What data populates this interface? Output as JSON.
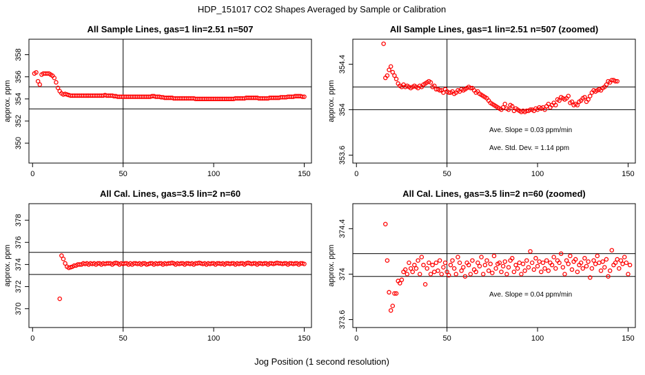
{
  "figure": {
    "title": "HDP_151017  CO2 Shapes Averaged by Sample or Calibration",
    "xlabel": "Jog Position (1 second resolution)"
  },
  "colors": {
    "points": "#ff0000",
    "axes": "#000000",
    "background": "#ffffff"
  },
  "chart_data": [
    {
      "type": "scatter",
      "title": "All Sample Lines, gas=1 lin=2.51 n=507",
      "xlabel": "",
      "ylabel": "approx. ppm",
      "xlim": [
        -2,
        154
      ],
      "ylim": [
        348.2,
        359.4
      ],
      "xticks": [
        0,
        50,
        100,
        150
      ],
      "yticks": [
        350,
        352,
        354,
        356,
        358
      ],
      "hlines": [
        353.1,
        355.1
      ],
      "vlines": [
        50
      ],
      "annotations": [],
      "series": [
        {
          "name": "sample",
          "x_start": 1,
          "y": [
            356.3,
            356.4,
            355.6,
            355.3,
            356.2,
            356.3,
            356.3,
            356.3,
            356.3,
            356.2,
            356.1,
            355.9,
            355.5,
            355.0,
            354.7,
            354.5,
            354.4,
            354.45,
            354.4,
            354.35,
            354.3,
            354.3,
            354.3,
            354.3,
            354.3,
            354.3,
            354.3,
            354.3,
            354.3,
            354.3,
            354.3,
            354.3,
            354.3,
            354.3,
            354.3,
            354.3,
            354.3,
            354.3,
            354.3,
            354.35,
            354.3,
            354.3,
            354.3,
            354.3,
            354.25,
            354.25,
            354.2,
            354.2,
            354.2,
            354.2,
            354.2,
            354.2,
            354.2,
            354.2,
            354.2,
            354.2,
            354.2,
            354.2,
            354.2,
            354.2,
            354.2,
            354.2,
            354.2,
            354.2,
            354.2,
            354.25,
            354.25,
            354.2,
            354.2,
            354.2,
            354.15,
            354.15,
            354.1,
            354.1,
            354.1,
            354.1,
            354.1,
            354.05,
            354.05,
            354.05,
            354.05,
            354.05,
            354.05,
            354.05,
            354.05,
            354.05,
            354.05,
            354.05,
            354.05,
            354.0,
            354.0,
            354.0,
            354.0,
            354.0,
            354.0,
            354.0,
            354.0,
            354.0,
            354.0,
            354.0,
            354.0,
            354.0,
            354.0,
            354.0,
            354.0,
            354.0,
            354.0,
            354.0,
            354.0,
            354.0,
            354.0,
            354.05,
            354.05,
            354.05,
            354.05,
            354.05,
            354.05,
            354.1,
            354.1,
            354.1,
            354.1,
            354.1,
            354.1,
            354.1,
            354.05,
            354.05,
            354.05,
            354.05,
            354.05,
            354.05,
            354.1,
            354.1,
            354.1,
            354.1,
            354.1,
            354.1,
            354.15,
            354.15,
            354.15,
            354.15,
            354.2,
            354.2,
            354.2,
            354.2,
            354.25,
            354.25,
            354.25,
            354.25,
            354.2,
            354.2
          ]
        }
      ]
    },
    {
      "type": "scatter",
      "title": "All Sample Lines, gas=1 lin=2.51 n=507 (zoomed)",
      "xlabel": "",
      "ylabel": "approx. ppm",
      "xlim": [
        -2,
        154
      ],
      "ylim": [
        353.53,
        354.62
      ],
      "xticks": [
        0,
        50,
        100,
        150
      ],
      "yticks": [
        353.6,
        354.0,
        354.4
      ],
      "hlines": [
        354.2,
        354.0
      ],
      "vlines": [
        50
      ],
      "annotations": [
        {
          "text": "Ave. Slope =  0.03  ppm/min"
        },
        {
          "text": "Ave. Std. Dev. =  1.14  ppm"
        }
      ],
      "series": [
        {
          "name": "sample-zoomed",
          "x_start": 15,
          "y": [
            354.58,
            354.28,
            354.3,
            354.35,
            354.38,
            354.33,
            354.3,
            354.27,
            354.23,
            354.21,
            354.2,
            354.22,
            354.2,
            354.21,
            354.2,
            354.19,
            354.2,
            354.21,
            354.2,
            354.19,
            354.21,
            354.2,
            354.22,
            354.23,
            354.24,
            354.25,
            354.24,
            354.2,
            354.21,
            354.18,
            354.18,
            354.17,
            354.17,
            354.15,
            354.18,
            354.16,
            354.15,
            354.15,
            354.16,
            354.14,
            354.15,
            354.17,
            354.16,
            354.18,
            354.17,
            354.18,
            354.19,
            354.2,
            354.19,
            354.19,
            354.17,
            354.15,
            354.16,
            354.14,
            354.13,
            354.12,
            354.11,
            354.1,
            354.08,
            354.06,
            354.05,
            354.04,
            354.03,
            354.02,
            354.01,
            354.0,
            354.02,
            354.05,
            354.01,
            354.0,
            354.04,
            354.03,
            353.99,
            354.01,
            354.0,
            353.99,
            353.98,
            353.99,
            353.98,
            353.99,
            353.99,
            354.0,
            354.0,
            353.99,
            354.01,
            354.0,
            354.02,
            354.01,
            354.02,
            354.0,
            354.03,
            354.05,
            354.02,
            354.04,
            354.06,
            354.04,
            354.09,
            354.08,
            354.11,
            354.1,
            354.09,
            354.1,
            354.12,
            354.06,
            354.07,
            354.04,
            354.05,
            354.04,
            354.07,
            354.08,
            354.1,
            354.11,
            354.07,
            354.09,
            354.12,
            354.15,
            354.17,
            354.16,
            354.17,
            354.18,
            354.17,
            354.19,
            354.2,
            354.22,
            354.25,
            354.24,
            354.26,
            354.26,
            354.25,
            354.25
          ]
        }
      ]
    },
    {
      "type": "scatter",
      "title": "All Cal. Lines, gas=3.5 lin=2 n=60",
      "xlabel": "",
      "ylabel": "approx. ppm",
      "xlim": [
        -2,
        154
      ],
      "ylim": [
        368.3,
        379.5
      ],
      "xticks": [
        0,
        50,
        100,
        150
      ],
      "yticks": [
        370,
        372,
        374,
        376,
        378
      ],
      "hlines": [
        375.1,
        373.1
      ],
      "vlines": [
        50
      ],
      "annotations": [],
      "series": [
        {
          "name": "calibration",
          "x_start": 15,
          "y": [
            370.9,
            374.8,
            374.5,
            374.1,
            373.8,
            373.7,
            373.75,
            373.8,
            373.9,
            373.9,
            374.0,
            374.0,
            374.0,
            374.1,
            374.05,
            374.1,
            374.0,
            374.1,
            374.05,
            374.1,
            374.0,
            374.1,
            374.1,
            374.0,
            374.1,
            374.05,
            374.1,
            374.1,
            374.1,
            374.0,
            374.1,
            374.15,
            374.1,
            374.0,
            374.1,
            374.05,
            374.1,
            374.1,
            374.0,
            374.1,
            374.0,
            374.1,
            374.1,
            374.05,
            374.1,
            374.0,
            374.1,
            374.1,
            374.0,
            374.05,
            374.1,
            374.1,
            374.0,
            374.1,
            374.05,
            374.1,
            374.1,
            374.0,
            374.1,
            374.05,
            374.1,
            374.1,
            374.15,
            374.1,
            374.0,
            374.1,
            374.05,
            374.1,
            374.1,
            374.0,
            374.1,
            374.1,
            374.05,
            374.1,
            374.0,
            374.1,
            374.1,
            374.15,
            374.1,
            374.05,
            374.1,
            374.0,
            374.1,
            374.05,
            374.1,
            374.1,
            374.0,
            374.1,
            374.1,
            374.05,
            374.1,
            374.0,
            374.1,
            374.1,
            374.05,
            374.1,
            374.1,
            374.0,
            374.1,
            374.05,
            374.1,
            374.1,
            374.0,
            374.1,
            374.15,
            374.1,
            374.05,
            374.1,
            374.1,
            374.0,
            374.1,
            374.1,
            374.05,
            374.1,
            374.1,
            374.0,
            374.1,
            374.1,
            374.05,
            374.1,
            374.15,
            374.1,
            374.1,
            374.05,
            374.1,
            374.1,
            374.0,
            374.1,
            374.1,
            374.05,
            374.1,
            374.1,
            374.0,
            374.1,
            374.1,
            374.05
          ]
        }
      ]
    },
    {
      "type": "scatter",
      "title": "All Cal. Lines, gas=3.5 lin=2 n=60 (zoomed)",
      "xlabel": "",
      "ylabel": "approx. ppm",
      "xlim": [
        -2,
        154
      ],
      "ylim": [
        373.53,
        374.62
      ],
      "xticks": [
        0,
        50,
        100,
        150
      ],
      "yticks": [
        373.6,
        374.0,
        374.4
      ],
      "hlines": [
        374.18,
        373.98
      ],
      "vlines": [
        50
      ],
      "annotations": [
        {
          "text": "Ave. Slope =  0.04  ppm/min"
        }
      ],
      "series": [
        {
          "name": "calibration-zoomed",
          "x_start": 16,
          "y": [
            374.44,
            374.12,
            373.84,
            373.68,
            373.72,
            373.83,
            373.83,
            373.94,
            373.92,
            373.95,
            374.02,
            374.04,
            374.0,
            374.1,
            374.05,
            374.02,
            374.08,
            374.05,
            374.12,
            374.0,
            374.15,
            374.08,
            373.91,
            374.05,
            374.1,
            374.0,
            374.08,
            374.02,
            374.1,
            374.03,
            374.12,
            374.0,
            374.06,
            374.1,
            374.02,
            373.99,
            374.08,
            374.12,
            374.05,
            374.0,
            374.15,
            374.1,
            374.03,
            374.06,
            373.98,
            374.1,
            374.08,
            374.0,
            374.12,
            374.04,
            374.02,
            374.1,
            374.07,
            374.15,
            374.0,
            374.08,
            374.12,
            374.03,
            374.09,
            374.01,
            374.16,
            374.05,
            374.09,
            374.1,
            374.02,
            374.07,
            374.11,
            374.0,
            374.06,
            374.12,
            374.14,
            374.02,
            374.08,
            374.05,
            374.1,
            374.0,
            374.09,
            374.03,
            374.12,
            374.06,
            374.2,
            374.1,
            374.04,
            374.14,
            374.07,
            374.11,
            374.02,
            374.1,
            374.05,
            374.12,
            374.03,
            374.1,
            374.08,
            374.15,
            374.05,
            374.12,
            374.1,
            374.18,
            374.06,
            374.0,
            374.12,
            374.09,
            374.16,
            374.04,
            374.11,
            374.13,
            374.02,
            374.08,
            374.1,
            374.05,
            374.14,
            374.07,
            374.11,
            373.97,
            374.05,
            374.12,
            374.09,
            374.16,
            374.1,
            374.03,
            374.11,
            374.06,
            374.13,
            373.98,
            374.03,
            374.21,
            374.08,
            374.1,
            374.13,
            374.05,
            374.12,
            374.09,
            374.15,
            374.1,
            374.0,
            374.08
          ]
        }
      ]
    }
  ]
}
